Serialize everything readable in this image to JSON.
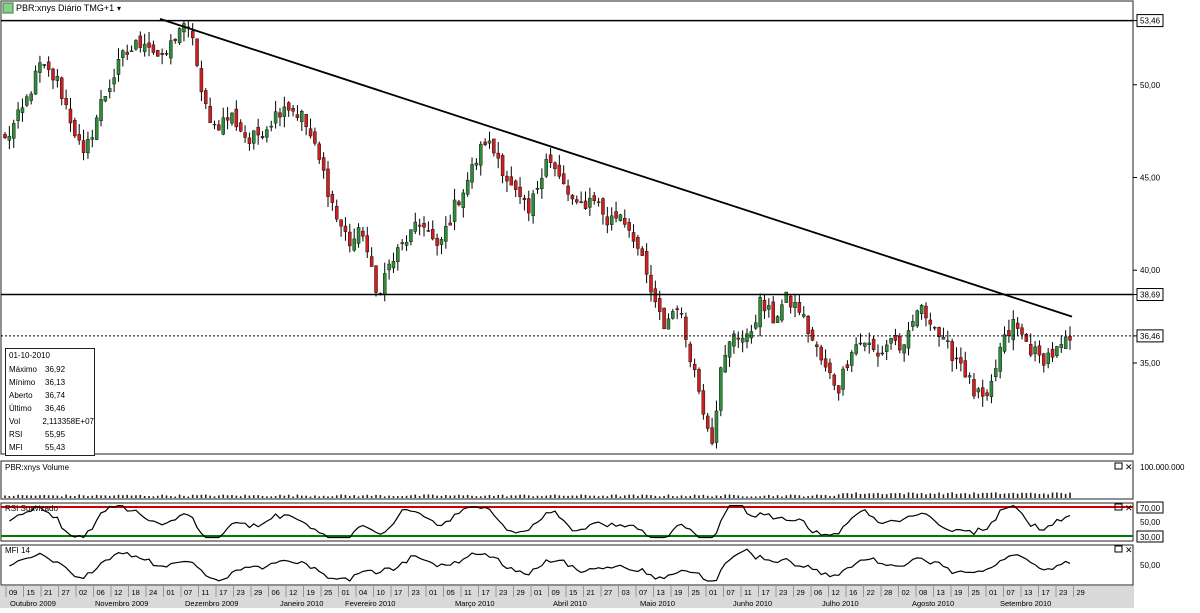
{
  "window": {
    "symbol_title": "PBR:xnys Diário TMG+1",
    "symbol_icon": "chart-icon"
  },
  "info_box": {
    "date": "01-10-2010",
    "rows": [
      {
        "label": "Máximo",
        "value": "36,92"
      },
      {
        "label": "Mínimo",
        "value": "36,13"
      },
      {
        "label": "Aberto",
        "value": "36,74"
      },
      {
        "label": "Último",
        "value": "36,46"
      },
      {
        "label": "Vol",
        "value": "2,113358E+07"
      },
      {
        "label": "RSI",
        "value": "55,95"
      },
      {
        "label": "MFI",
        "value": "55,43"
      }
    ]
  },
  "panels": {
    "volume_title": "PBR:xnys Volume",
    "volume_label": "100.000.000",
    "rsi_title": "RSI Suavizado",
    "mfi_title": "MFI 14"
  },
  "colors": {
    "up": "#2e8b3a",
    "down": "#cc1f1f",
    "line": "#000000",
    "rsi_upper": "#d00000",
    "rsi_lower": "#007a00"
  },
  "chart_data": {
    "type": "candlestick",
    "price_axis_ticks": [
      "53,46",
      "50,00",
      "45,00",
      "40,00",
      "38,69",
      "36,46",
      "35,00"
    ],
    "price_ticks_numeric": [
      53.46,
      50.0,
      45.0,
      40.0,
      38.69,
      36.46,
      35.0
    ],
    "price_range": [
      30.2,
      54.3
    ],
    "horizontal_lines": [
      53.46,
      38.69
    ],
    "dotted_last": 36.46,
    "trendline": {
      "from": {
        "idx": 0,
        "price": 53.55
      },
      "to": {
        "idx": 258,
        "price": 37.5
      }
    },
    "rsi_ticks": [
      "70,00",
      "50,00",
      "30,00"
    ],
    "mfi_ticks": [
      "50,00"
    ],
    "date_ticks": [
      "09",
      "15",
      "21",
      "27",
      "02",
      "06",
      "12",
      "18",
      "24",
      "01",
      "07",
      "11",
      "17",
      "23",
      "29",
      "06",
      "12",
      "19",
      "25",
      "01",
      "04",
      "10",
      "17",
      "23",
      "01",
      "05",
      "11",
      "17",
      "23",
      "29",
      "01",
      "09",
      "15",
      "21",
      "27",
      "03",
      "07",
      "13",
      "19",
      "25",
      "01",
      "07",
      "11",
      "17",
      "23",
      "29",
      "06",
      "12",
      "16",
      "22",
      "28",
      "02",
      "08",
      "13",
      "19",
      "25",
      "01",
      "07",
      "13",
      "17",
      "23",
      "29"
    ],
    "month_labels": [
      "Outubro 2009",
      "Novembro 2009",
      "Dezembro 2009",
      "Janeiro 2010",
      "Fevereiro 2010",
      "Março 2010",
      "Abril 2010",
      "Maio 2010",
      "Junho 2010",
      "Julho 2010",
      "Agosto 2010",
      "Setembro 2010"
    ],
    "close_anchors": [
      [
        0,
        47.0
      ],
      [
        4,
        48.6
      ],
      [
        8,
        51.0
      ],
      [
        12,
        50.2
      ],
      [
        16,
        47.5
      ],
      [
        18,
        46.0
      ],
      [
        22,
        49.0
      ],
      [
        27,
        51.5
      ],
      [
        32,
        52.5
      ],
      [
        36,
        51.2
      ],
      [
        40,
        53.1
      ],
      [
        43,
        52.7
      ],
      [
        45,
        49.3
      ],
      [
        48,
        47.8
      ],
      [
        52,
        48.3
      ],
      [
        56,
        46.9
      ],
      [
        60,
        47.8
      ],
      [
        64,
        49.0
      ],
      [
        68,
        48.3
      ],
      [
        70,
        47.2
      ],
      [
        73,
        45.2
      ],
      [
        76,
        42.8
      ],
      [
        79,
        41.5
      ],
      [
        82,
        42.1
      ],
      [
        85,
        38.7
      ],
      [
        88,
        40.2
      ],
      [
        92,
        41.7
      ],
      [
        96,
        42.6
      ],
      [
        99,
        41.0
      ],
      [
        103,
        43.4
      ],
      [
        106,
        44.9
      ],
      [
        110,
        47.0
      ],
      [
        113,
        46.1
      ],
      [
        116,
        44.4
      ],
      [
        120,
        43.0
      ],
      [
        124,
        46.2
      ],
      [
        127,
        44.9
      ],
      [
        131,
        43.3
      ],
      [
        135,
        44.0
      ],
      [
        138,
        42.6
      ],
      [
        141,
        43.1
      ],
      [
        144,
        41.9
      ],
      [
        147,
        39.6
      ],
      [
        149,
        38.0
      ],
      [
        151,
        37.0
      ],
      [
        154,
        38.2
      ],
      [
        157,
        35.5
      ],
      [
        160,
        32.6
      ],
      [
        162,
        31.0
      ],
      [
        164,
        34.5
      ],
      [
        167,
        36.7
      ],
      [
        170,
        36.2
      ],
      [
        173,
        38.2
      ],
      [
        176,
        37.4
      ],
      [
        179,
        38.4
      ],
      [
        182,
        37.9
      ],
      [
        185,
        36.2
      ],
      [
        188,
        34.6
      ],
      [
        191,
        33.7
      ],
      [
        194,
        35.9
      ],
      [
        197,
        36.2
      ],
      [
        200,
        35.3
      ],
      [
        203,
        36.4
      ],
      [
        206,
        35.6
      ],
      [
        209,
        37.9
      ],
      [
        212,
        37.5
      ],
      [
        215,
        36.0
      ],
      [
        219,
        35.1
      ],
      [
        222,
        33.4
      ],
      [
        225,
        32.8
      ],
      [
        228,
        35.7
      ],
      [
        231,
        37.1
      ],
      [
        234,
        36.1
      ],
      [
        237,
        35.2
      ],
      [
        241,
        35.6
      ],
      [
        244,
        36.2
      ]
    ],
    "volume_spikes": [
      {
        "idx": 247,
        "ratio": 0.95
      },
      {
        "idx": 248,
        "ratio": 0.35
      },
      {
        "idx": 250,
        "ratio": 0.5
      }
    ],
    "note_x_indices": "trading-day index 0..244"
  }
}
